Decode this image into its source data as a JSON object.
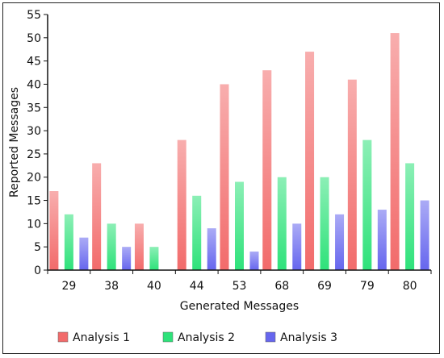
{
  "chart_data": {
    "type": "bar",
    "xlabel": "Generated Messages",
    "ylabel": "Reported Messages",
    "categories": [
      "29",
      "38",
      "40",
      "44",
      "53",
      "68",
      "69",
      "79",
      "80"
    ],
    "ylim": [
      0,
      55
    ],
    "yticks": [
      0,
      5,
      10,
      15,
      20,
      25,
      30,
      35,
      40,
      45,
      50,
      55
    ],
    "grid": false,
    "legend_position": "bottom",
    "series": [
      {
        "name": "Analysis 1",
        "color": "#f26b6b",
        "values": [
          17,
          23,
          10,
          28,
          40,
          43,
          47,
          41,
          51
        ]
      },
      {
        "name": "Analysis 2",
        "color": "#2ee27a",
        "values": [
          12,
          10,
          5,
          16,
          19,
          20,
          20,
          28,
          23
        ]
      },
      {
        "name": "Analysis 3",
        "color": "#6666ee",
        "values": [
          7,
          5,
          0,
          9,
          4,
          10,
          12,
          13,
          15
        ]
      }
    ]
  }
}
